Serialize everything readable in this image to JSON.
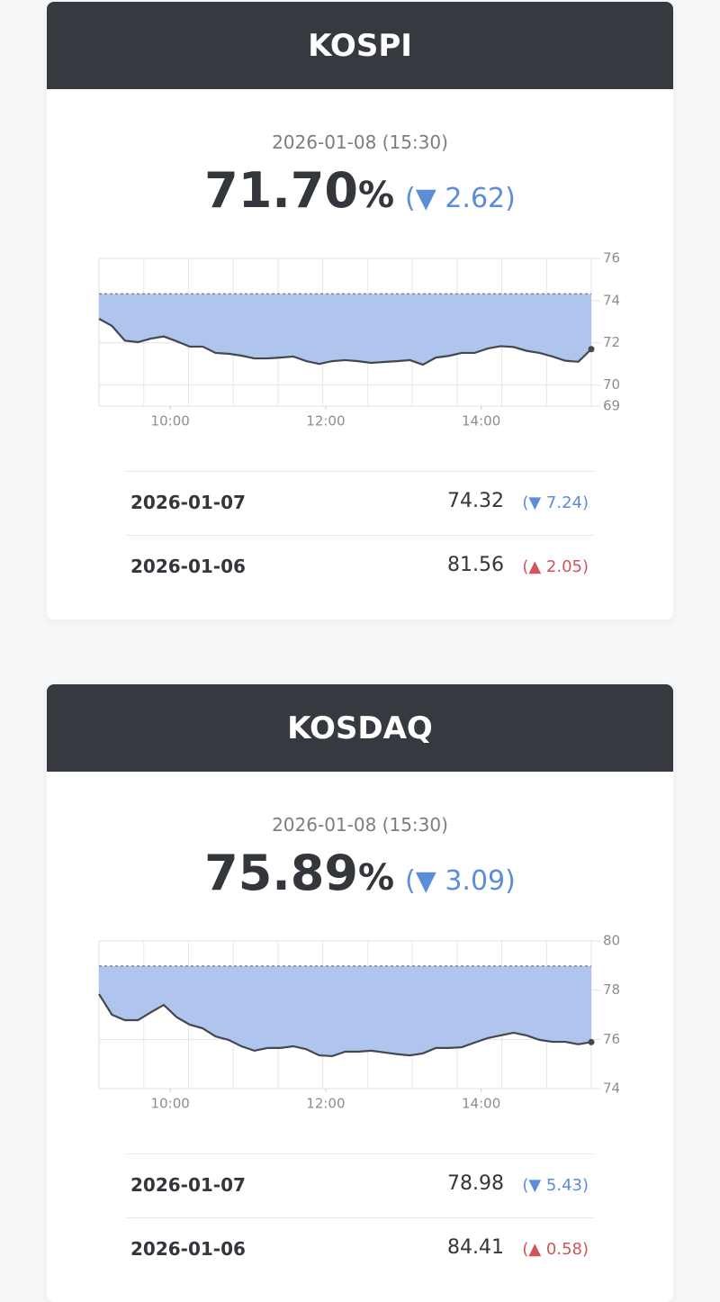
{
  "cards": [
    {
      "title": "KOSPI",
      "timestamp": "2026-01-08 (15:30)",
      "value": "71.70",
      "unit": "%",
      "change": "(▼ 2.62)",
      "change_color": "#5b8dd9",
      "history": [
        {
          "date": "2026-01-07",
          "value": "74.32",
          "change": "(▼ 7.24)",
          "color": "#5b8dd9"
        },
        {
          "date": "2026-01-06",
          "value": "81.56",
          "change": "(▲ 2.05)",
          "color": "#d0555a"
        }
      ]
    },
    {
      "title": "KOSDAQ",
      "timestamp": "2026-01-08 (15:30)",
      "value": "75.89",
      "unit": "%",
      "change": "(▼ 3.09)",
      "change_color": "#5b8dd9",
      "history": [
        {
          "date": "2026-01-07",
          "value": "78.98",
          "change": "(▼ 5.43)",
          "color": "#5b8dd9"
        },
        {
          "date": "2026-01-06",
          "value": "84.41",
          "change": "(▲ 0.58)",
          "color": "#d0555a"
        }
      ]
    }
  ],
  "chart_data": [
    {
      "type": "line",
      "x": [
        545,
        555,
        565,
        575,
        585,
        595,
        605,
        615,
        625,
        635,
        645,
        655,
        665,
        675,
        685,
        695,
        705,
        715,
        725,
        735,
        745,
        755,
        765,
        775,
        785,
        795,
        805,
        815,
        825,
        835,
        845,
        855,
        865,
        875,
        885,
        895,
        905,
        915,
        925
      ],
      "series": [
        {
          "color": "#44474d",
          "values": [
            73.14,
            72.8,
            72.1,
            72.03,
            72.2,
            72.3,
            72.07,
            71.82,
            71.82,
            71.52,
            71.48,
            71.39,
            71.26,
            71.26,
            71.3,
            71.35,
            71.13,
            71.0,
            71.13,
            71.18,
            71.13,
            71.05,
            71.09,
            71.13,
            71.18,
            70.96,
            71.3,
            71.38,
            71.52,
            71.52,
            71.73,
            71.84,
            71.8,
            71.62,
            71.52,
            71.35,
            71.15,
            71.1,
            71.7
          ]
        }
      ],
      "reference": 74.32,
      "fill_color": "#afc5ee",
      "reference_color": "#777777",
      "xlim": [
        545,
        925
      ],
      "xticks": [
        {
          "value": 600,
          "label": "10:00"
        },
        {
          "value": 720,
          "label": "12:00"
        },
        {
          "value": 840,
          "label": "14:00"
        }
      ],
      "ylim": [
        69,
        76
      ],
      "yticks": [
        69,
        70,
        72,
        74,
        76
      ],
      "grid": true
    },
    {
      "type": "line",
      "x": [
        545,
        555,
        565,
        575,
        585,
        595,
        605,
        615,
        625,
        635,
        645,
        655,
        665,
        675,
        685,
        695,
        705,
        715,
        725,
        735,
        745,
        755,
        765,
        775,
        785,
        795,
        805,
        815,
        825,
        835,
        845,
        855,
        865,
        875,
        885,
        895,
        905,
        915,
        925
      ],
      "series": [
        {
          "color": "#44474d",
          "values": [
            77.84,
            77.0,
            76.78,
            76.78,
            77.1,
            77.4,
            76.9,
            76.6,
            76.45,
            76.12,
            75.98,
            75.72,
            75.54,
            75.65,
            75.65,
            75.72,
            75.6,
            75.35,
            75.32,
            75.5,
            75.5,
            75.54,
            75.47,
            75.4,
            75.35,
            75.43,
            75.65,
            75.65,
            75.68,
            75.87,
            76.05,
            76.16,
            76.27,
            76.16,
            75.98,
            75.9,
            75.9,
            75.8,
            75.89
          ]
        }
      ],
      "reference": 78.98,
      "fill_color": "#afc5ee",
      "reference_color": "#777777",
      "xlim": [
        545,
        925
      ],
      "xticks": [
        {
          "value": 600,
          "label": "10:00"
        },
        {
          "value": 720,
          "label": "12:00"
        },
        {
          "value": 840,
          "label": "14:00"
        }
      ],
      "ylim": [
        74,
        80
      ],
      "yticks": [
        74,
        76,
        78,
        80
      ],
      "grid": true
    }
  ]
}
